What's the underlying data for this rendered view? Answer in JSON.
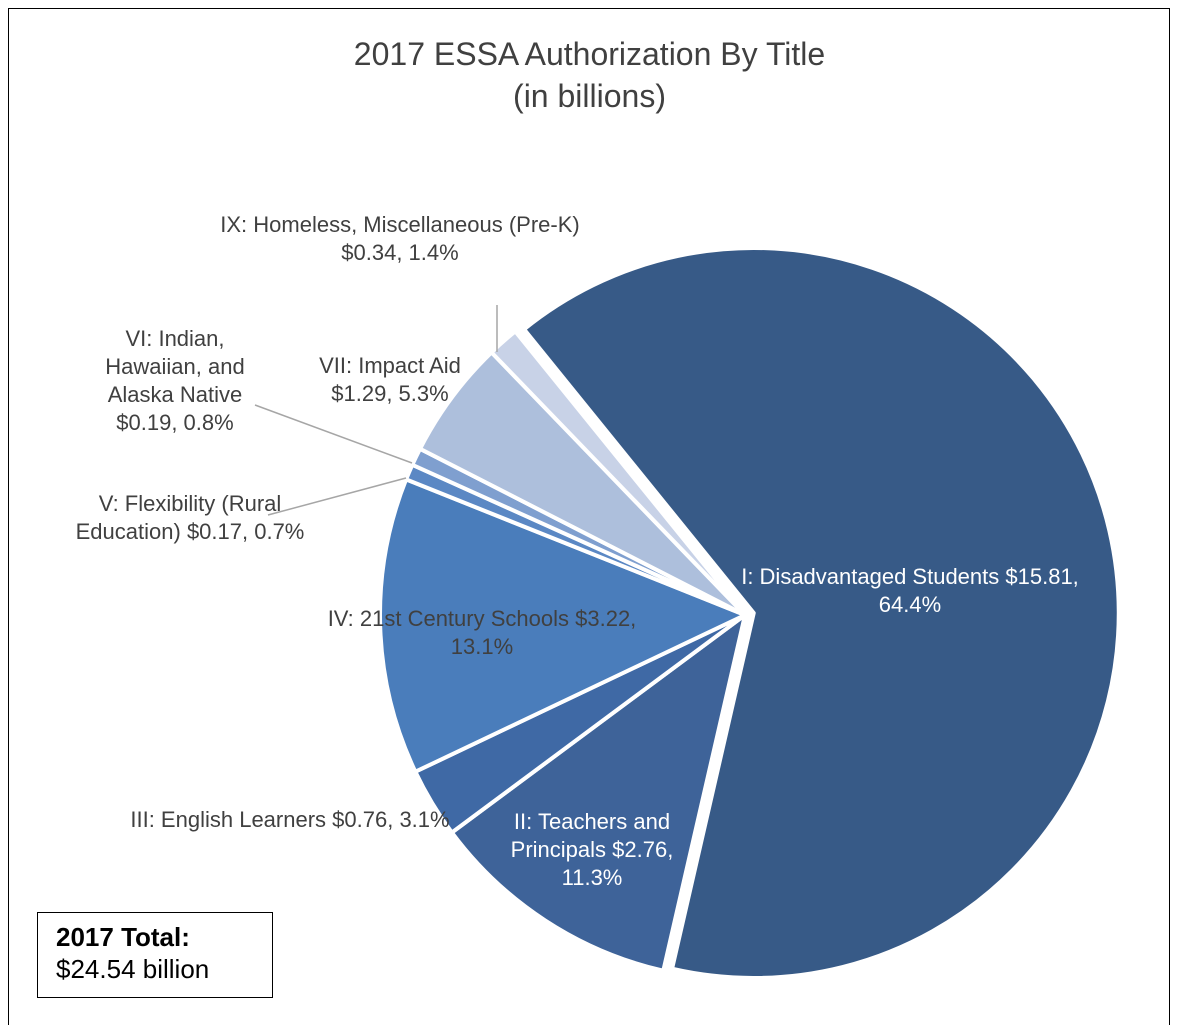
{
  "chart_data": {
    "type": "pie",
    "title": "2017 ESSA Authorization By Title",
    "subtitle": "(in billions)",
    "categories": [
      "I: Disadvantaged Students",
      "II: Teachers and Principals",
      "III: English Learners",
      "IV: 21st Century Schools",
      "V: Flexibility (Rural Education)",
      "VI: Indian, Hawaiian, and Alaska Native",
      "VII: Impact Aid",
      "IX: Homeless, Miscellaneous (Pre-K)"
    ],
    "values": [
      15.81,
      2.76,
      0.76,
      3.22,
      0.17,
      0.19,
      1.29,
      0.34
    ],
    "value_labels": [
      "$15.81, 64.4%",
      "$2.76, 11.3%",
      "$0.76, 3.1%",
      "$3.22, 13.1%",
      "$0.17, 0.7%",
      "$0.19, 0.8%",
      "$1.29, 5.3%",
      "$0.34, 1.4%"
    ],
    "colors": [
      "#375a87",
      "#3e6399",
      "#3f69a5",
      "#4a7dbb",
      "#5b88c4",
      "#7f9fcf",
      "#adbfdc",
      "#c8d2e7"
    ],
    "annotations": {
      "total_label": "2017 Total:",
      "total_value": "$24.54 billion"
    }
  }
}
